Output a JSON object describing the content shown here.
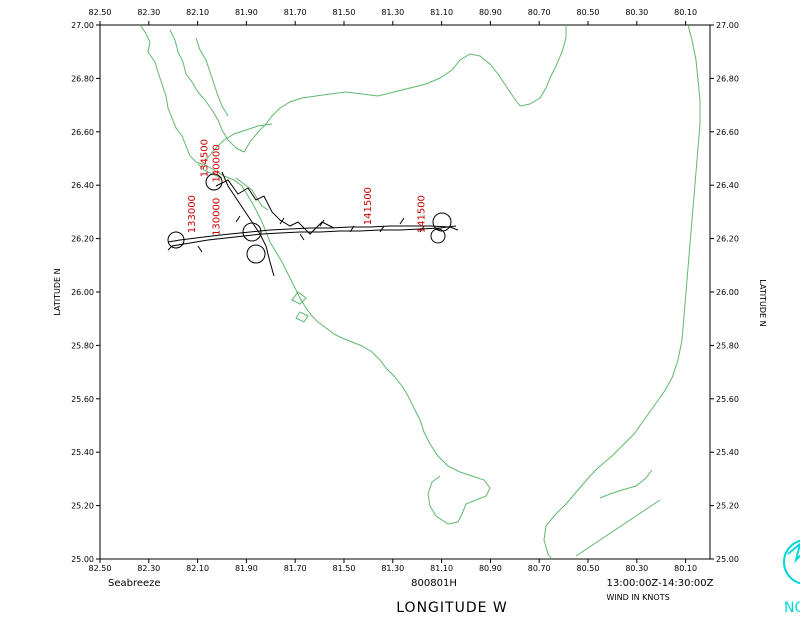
{
  "title_left": "Seabreeze",
  "title_center": "800801H",
  "title_right": "13:00:00Z-14:30:00Z",
  "wind_units": "WIND IN KNOTS",
  "x_axis_label": "LONGITUDE  W",
  "y_axis_label_left": "LATITUDE  N",
  "y_axis_label_right": "LATITUDE  N",
  "x_ticks": [
    "82.50",
    "82.30",
    "82.10",
    "81.90",
    "81.70",
    "81.50",
    "81.30",
    "81.10",
    "80.90",
    "80.70",
    "80.50",
    "80.30",
    "80.10"
  ],
  "y_ticks": [
    "27.00",
    "26.80",
    "26.60",
    "26.40",
    "26.20",
    "26.00",
    "25.80",
    "25.60",
    "25.40",
    "25.20",
    "25.00"
  ],
  "lon_range": [
    82.5,
    80.0
  ],
  "lat_range": [
    25.0,
    27.0
  ],
  "colors": {
    "coast": "#5fb86e",
    "track": "#000000",
    "time_label": "#cc0000",
    "frame": "#000000",
    "logo": "#00d8d8"
  },
  "time_labels": [
    {
      "text": "134500",
      "lon": 82.06,
      "lat": 26.43
    },
    {
      "text": "140000",
      "lon": 82.01,
      "lat": 26.41
    },
    {
      "text": "133000",
      "lon": 82.11,
      "lat": 26.22
    },
    {
      "text": "130000",
      "lon": 82.01,
      "lat": 26.21
    },
    {
      "text": "141500",
      "lon": 81.39,
      "lat": 26.25
    },
    {
      "text": "141500",
      "lon": 81.17,
      "lat": 26.22
    }
  ],
  "logo_text": "NO"
}
